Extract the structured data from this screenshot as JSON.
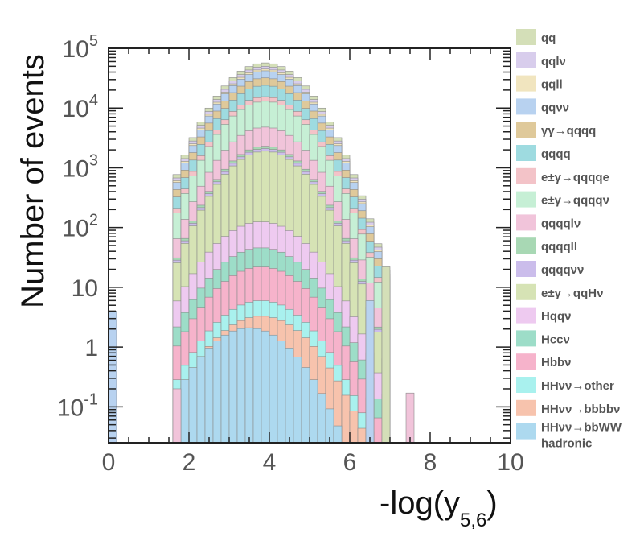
{
  "chart_data": {
    "type": "histogram-stacked",
    "xlabel_main": "-log(y",
    "xlabel_sub": "5,6",
    "xlabel_close": ")",
    "ylabel": "Number of events",
    "x_ticks": [
      "0",
      "2",
      "4",
      "6",
      "8",
      "10"
    ],
    "y_ticks": [
      {
        "value": 100000,
        "base": "10",
        "exp": "5"
      },
      {
        "value": 10000,
        "base": "10",
        "exp": "4"
      },
      {
        "value": 1000,
        "base": "10",
        "exp": "3"
      },
      {
        "value": 100,
        "base": "10",
        "exp": "2"
      },
      {
        "value": 10,
        "base": "10",
        "exp": ""
      },
      {
        "value": 1,
        "base": "1",
        "exp": ""
      },
      {
        "value": 0.1,
        "base": "10",
        "exp": "-1"
      }
    ],
    "xlim": [
      0,
      10
    ],
    "ylim": [
      0.025,
      100000
    ],
    "y_scale": "log",
    "bin_width": 0.2,
    "legend_placement": "right",
    "series": [
      {
        "name": "qq",
        "color": "#d4dfb8"
      },
      {
        "name": "qqlν",
        "color": "#d8cdec"
      },
      {
        "name": "qqll",
        "color": "#f1e5bf"
      },
      {
        "name": "qqνν",
        "color": "#b8d2f0"
      },
      {
        "name": "γγ→qqqq",
        "color": "#dfc99a"
      },
      {
        "name": "qqqq",
        "color": "#9edbe0"
      },
      {
        "name": "e±γ→qqqqe",
        "color": "#f3c3c8"
      },
      {
        "name": "e±γ→qqqqν",
        "color": "#c6efd5"
      },
      {
        "name": "qqqqlν",
        "color": "#f1c4da"
      },
      {
        "name": "qqqqll",
        "color": "#a8d8b4"
      },
      {
        "name": "qqqqνν",
        "color": "#cbbdeb"
      },
      {
        "name": "e±γ→qqHν",
        "color": "#d6e3b5"
      },
      {
        "name": "Hqqν",
        "color": "#eecaf0"
      },
      {
        "name": "Hccν",
        "color": "#9dddc8"
      },
      {
        "name": "Hbbν",
        "color": "#f6b3cb"
      },
      {
        "name": "HHνν→other",
        "color": "#a9f1ee"
      },
      {
        "name": "HHνν→bbbbν",
        "color": "#f7c3ad"
      },
      {
        "name": "HHνν→bbWW hadronic",
        "color": "#add9ef"
      }
    ],
    "stack_totals": {
      "note_series": "cumulative totals of the stack, innermost (hadronic) to outermost (qq)",
      "layers": [
        {
          "series": "HHνν→bbWW hadronic",
          "center": 3.5,
          "peak": 2.1,
          "sigma": 0.8
        },
        {
          "series": "HHνν→bbbbν",
          "center": 3.8,
          "peak": 3.3,
          "sigma": 0.85
        },
        {
          "series": "HHνν→other",
          "center": 3.8,
          "peak": 6,
          "sigma": 0.85
        },
        {
          "series": "Hbbν",
          "center": 3.8,
          "peak": 22,
          "sigma": 0.85
        },
        {
          "series": "Hccν",
          "center": 3.8,
          "peak": 46,
          "sigma": 0.85
        },
        {
          "series": "Hqqν",
          "center": 3.8,
          "peak": 125,
          "sigma": 0.85
        },
        {
          "series": "e±γ→qqHν",
          "center": 3.9,
          "peak": 1900,
          "sigma": 0.75
        },
        {
          "series": "qqqqνν",
          "center": 3.9,
          "peak": 2100,
          "sigma": 0.75
        },
        {
          "series": "qqqqll",
          "center": 3.9,
          "peak": 2300,
          "sigma": 0.75
        },
        {
          "series": "qqqqlν",
          "center": 3.9,
          "peak": 4800,
          "sigma": 0.75
        },
        {
          "series": "e±γ→qqqqν",
          "center": 3.9,
          "peak": 13000,
          "sigma": 0.75
        },
        {
          "series": "e±γ→qqqqe",
          "center": 3.9,
          "peak": 15500,
          "sigma": 0.75
        },
        {
          "series": "qqqq",
          "center": 3.9,
          "peak": 24000,
          "sigma": 0.75
        },
        {
          "series": "γγ→qqqq",
          "center": 3.9,
          "peak": 32000,
          "sigma": 0.75
        },
        {
          "series": "qqνν",
          "center": 3.9,
          "peak": 42000,
          "sigma": 0.75
        },
        {
          "series": "qqll",
          "center": 3.9,
          "peak": 45000,
          "sigma": 0.75
        },
        {
          "series": "qqlν",
          "center": 3.9,
          "peak": 50000,
          "sigma": 0.75
        },
        {
          "series": "qq",
          "center": 3.9,
          "peak": 57000,
          "sigma": 0.75
        }
      ]
    },
    "isolated_bins": [
      {
        "series": "qqνν",
        "x": 0.0,
        "value": 4.0
      },
      {
        "series": "qqqqlν",
        "x": 1.6,
        "value": 0.2
      },
      {
        "series": "qqνν",
        "x": 6.4,
        "value": 6.0
      },
      {
        "series": "qq",
        "x": 6.8,
        "value": 22
      },
      {
        "series": "qqqqlν",
        "x": 7.4,
        "value": 0.17
      }
    ]
  }
}
